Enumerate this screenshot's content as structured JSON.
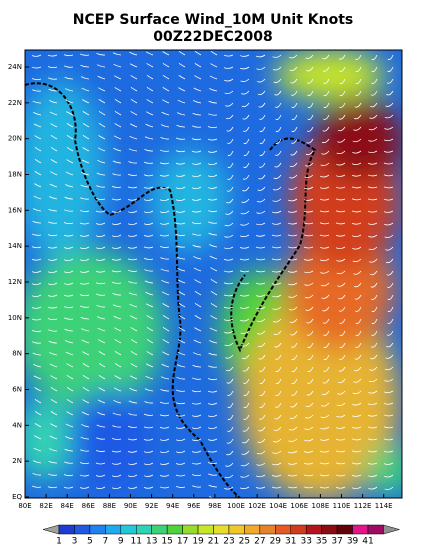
{
  "title": "NCEP Surface Wind_10M Unit Knots",
  "subtitle": "00Z22DEC2008",
  "lat_labels": [
    "24N",
    "22N",
    "20N",
    "18N",
    "16N",
    "14N",
    "12N",
    "10N",
    "8N",
    "6N",
    "4N",
    "2N",
    "EQ"
  ],
  "lon_labels": [
    "80E",
    "82E",
    "84E",
    "86E",
    "88E",
    "90E",
    "92E",
    "94E",
    "96E",
    "98E",
    "100E",
    "102E",
    "104E",
    "106E",
    "108E",
    "110E",
    "112E",
    "114E"
  ],
  "colorbar": {
    "labels": [
      1,
      3,
      5,
      7,
      9,
      11,
      13,
      15,
      17,
      19,
      21,
      23,
      25,
      27,
      29,
      31,
      33,
      35,
      37,
      39,
      41
    ],
    "colors": [
      "#a0a0a0",
      "#1e3cd2",
      "#1e5ae6",
      "#1e82f0",
      "#1eaaf0",
      "#20c8d8",
      "#30d2b4",
      "#3cd278",
      "#50d23c",
      "#96dc28",
      "#c8e628",
      "#e6dc32",
      "#f0c828",
      "#f0aa28",
      "#e68228",
      "#e65a28",
      "#d23c1e",
      "#b4141e",
      "#8c0a14",
      "#64000a",
      "#e6148c",
      "#a00a64",
      "#909090"
    ]
  }
}
